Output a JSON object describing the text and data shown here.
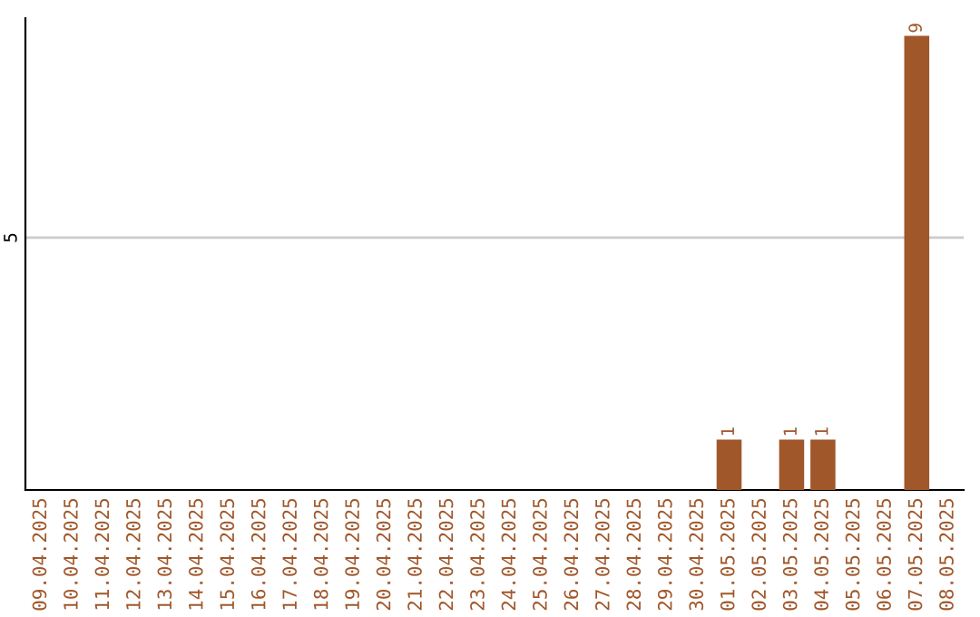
{
  "chart_data": {
    "type": "bar",
    "categories": [
      "09.04.2025",
      "10.04.2025",
      "11.04.2025",
      "12.04.2025",
      "13.04.2025",
      "14.04.2025",
      "15.04.2025",
      "16.04.2025",
      "17.04.2025",
      "18.04.2025",
      "19.04.2025",
      "20.04.2025",
      "21.04.2025",
      "22.04.2025",
      "23.04.2025",
      "24.04.2025",
      "25.04.2025",
      "26.04.2025",
      "27.04.2025",
      "28.04.2025",
      "29.04.2025",
      "30.04.2025",
      "01.05.2025",
      "02.05.2025",
      "03.05.2025",
      "04.05.2025",
      "05.05.2025",
      "06.05.2025",
      "07.05.2025",
      "08.05.2025"
    ],
    "values": [
      null,
      null,
      null,
      null,
      null,
      null,
      null,
      null,
      null,
      null,
      null,
      null,
      null,
      null,
      null,
      null,
      null,
      null,
      null,
      null,
      null,
      null,
      1,
      null,
      1,
      1,
      null,
      null,
      9,
      null
    ],
    "value_labels": [
      null,
      null,
      null,
      null,
      null,
      null,
      null,
      null,
      null,
      null,
      null,
      null,
      null,
      null,
      null,
      null,
      null,
      null,
      null,
      null,
      null,
      null,
      "1",
      null,
      "1",
      "1",
      null,
      null,
      "9",
      null
    ],
    "color": "#a0572a",
    "ylim": [
      0,
      9.35
    ],
    "yticks": [
      5
    ],
    "grid": "y"
  }
}
